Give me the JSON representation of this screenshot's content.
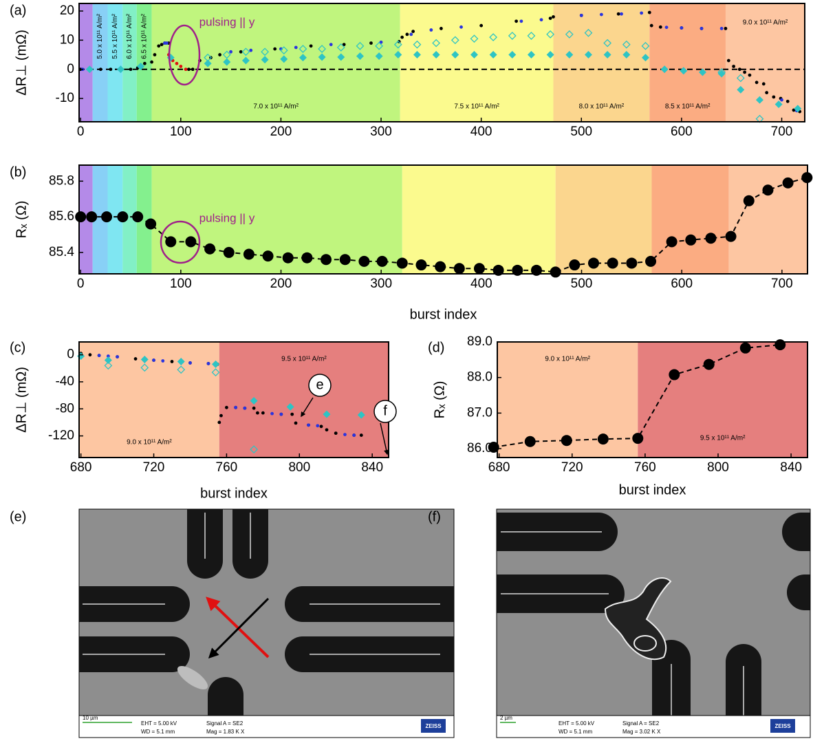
{
  "chart_data": [
    {
      "type": "scatter",
      "panel": "(a)",
      "ylabel": "ΔR⊥ (mΩ)",
      "xlim": [
        -1.5,
        723
      ],
      "ylim": [
        -18,
        22.6
      ],
      "xticks": [
        0,
        100,
        200,
        300,
        400,
        500,
        600,
        700
      ],
      "yticks": [
        -10,
        0,
        10,
        20
      ],
      "hline": 0,
      "bands": [
        {
          "start": -1.5,
          "end": 12,
          "color": "#b48ae8"
        },
        {
          "start": 12,
          "end": 27,
          "color": "#88d0f6",
          "label": "5.0 x 10¹¹ A/m²"
        },
        {
          "start": 27,
          "end": 42,
          "color": "#7fe6f2",
          "label": "5.5 x 10¹¹ A/m²"
        },
        {
          "start": 42,
          "end": 56,
          "color": "#82f0c6",
          "label": "6.0 x 10¹¹ A/m²"
        },
        {
          "start": 56,
          "end": 71,
          "color": "#84f08e",
          "label": "6.5 x 10¹¹ A/m²"
        },
        {
          "start": 71,
          "end": 319,
          "color": "#c0f57e",
          "label": "7.0 x 10¹¹ A/m²"
        },
        {
          "start": 319,
          "end": 472,
          "color": "#fbfa8e",
          "label": "7.5 x 10¹¹ A/m²"
        },
        {
          "start": 472,
          "end": 568,
          "color": "#fbd68e",
          "label": "8.0 x 10¹¹ A/m²"
        },
        {
          "start": 568,
          "end": 644,
          "color": "#fbac82",
          "label": "8.5 x 10¹¹ A/m²"
        },
        {
          "start": 644,
          "end": 723,
          "color": "#fdc6a2",
          "label": "9.0 x 10¹¹ A/m²"
        }
      ],
      "series": [
        {
          "color": "#000000",
          "marker": "dot",
          "x": [
            0,
            10,
            20,
            30,
            40,
            50,
            57,
            64,
            71,
            74,
            78,
            81,
            84,
            88,
            108,
            112,
            119,
            130,
            139,
            160,
            194,
            230,
            263,
            290,
            318,
            321,
            326,
            332,
            360,
            400,
            435,
            469,
            472,
            500,
            537,
            568,
            570,
            579,
            600,
            620,
            644,
            647,
            652,
            658,
            663,
            668,
            675,
            682,
            685,
            692,
            699,
            706,
            712,
            718
          ],
          "values": [
            0,
            0,
            0,
            0,
            0,
            0,
            0.5,
            2,
            2.5,
            5,
            8,
            8.5,
            9,
            9,
            0,
            0,
            3,
            4,
            5,
            6,
            7,
            8,
            8.5,
            9,
            9.5,
            11,
            12,
            13,
            14,
            15,
            16.5,
            17.5,
            18,
            18.5,
            19,
            19.5,
            15,
            14.5,
            14.2,
            14,
            14,
            3,
            1,
            0,
            -1,
            -2,
            -4.5,
            -5,
            -8,
            -9.5,
            -10,
            -11,
            -14,
            -14.5
          ]
        },
        {
          "color": "#e01010",
          "marker": "dot",
          "x": [
            88,
            92,
            96,
            100,
            105
          ],
          "values": [
            5,
            3,
            2,
            1,
            0
          ]
        },
        {
          "color": "#2a34e0",
          "marker": "dot",
          "x": [
            2,
            8,
            40,
            84,
            86,
            150,
            170,
            200,
            215,
            250,
            300,
            330,
            350,
            380,
            440,
            460,
            500,
            520,
            540,
            560,
            585,
            600,
            620,
            640,
            700,
            715
          ],
          "values": [
            0,
            0,
            0,
            9,
            9,
            6,
            6.5,
            7,
            7.5,
            8.5,
            9.3,
            12,
            13.5,
            14.5,
            16.5,
            17,
            18.5,
            18.8,
            19,
            19.3,
            14.4,
            14.2,
            14,
            14,
            -10.5,
            -14.2
          ]
        },
        {
          "color": "#2ec4c4",
          "marker": "diamond",
          "x": [
            9,
            40,
            60,
            90,
            127,
            146,
            165,
            184,
            203,
            222,
            241,
            260,
            279,
            298,
            317,
            336,
            355,
            374,
            393,
            412,
            431,
            450,
            469,
            488,
            507,
            526,
            545,
            564,
            583,
            602,
            621,
            640,
            659,
            678,
            697,
            716
          ],
          "values": [
            0,
            0,
            1,
            4,
            2,
            2.5,
            3,
            3.3,
            3.5,
            4,
            4.2,
            4.2,
            4.5,
            4.5,
            5,
            5,
            5,
            5,
            5,
            5,
            5,
            5,
            5,
            5,
            5,
            5,
            5,
            4,
            0,
            -0.5,
            -1,
            -1.5,
            -7,
            -10.5,
            -12,
            -13.5
          ]
        },
        {
          "color": "#2ec4c4",
          "marker": "open-diamond",
          "x": [
            127,
            146,
            165,
            184,
            203,
            222,
            241,
            260,
            279,
            298,
            317,
            336,
            355,
            374,
            393,
            412,
            431,
            450,
            469,
            488,
            507,
            526,
            545,
            564,
            640,
            659,
            678
          ],
          "values": [
            4,
            5,
            6,
            6,
            6.5,
            7,
            7,
            7.5,
            8,
            8,
            8.5,
            8.5,
            9,
            10,
            10.5,
            11,
            11.5,
            11.5,
            12,
            12,
            12.5,
            9,
            8.5,
            8,
            -1,
            -3,
            -17
          ]
        }
      ],
      "annotations": [
        "pulsing || y"
      ]
    },
    {
      "type": "line",
      "panel": "(b)",
      "ylabel": "Rₓ (Ω)",
      "xlabel": "burst index",
      "xlim": [
        -1.5,
        725.5
      ],
      "ylim": [
        85.28,
        85.89
      ],
      "xticks": [
        0,
        100,
        200,
        300,
        400,
        500,
        600,
        700
      ],
      "yticks": [
        85.4,
        85.6,
        85.8
      ],
      "bands": [
        {
          "start": -1.5,
          "end": 12,
          "color": "#b48ae8"
        },
        {
          "start": 12,
          "end": 27,
          "color": "#88d0f6"
        },
        {
          "start": 27,
          "end": 42,
          "color": "#7fe6f2"
        },
        {
          "start": 42,
          "end": 56,
          "color": "#82f0c6"
        },
        {
          "start": 56,
          "end": 71,
          "color": "#84f08e"
        },
        {
          "start": 71,
          "end": 321,
          "color": "#c0f57e"
        },
        {
          "start": 321,
          "end": 474,
          "color": "#fbfa8e"
        },
        {
          "start": 474,
          "end": 570,
          "color": "#fbd68e"
        },
        {
          "start": 570,
          "end": 647,
          "color": "#fbac82"
        },
        {
          "start": 647,
          "end": 725.5,
          "color": "#fdc6a2"
        }
      ],
      "series": [
        {
          "color": "#000000",
          "marker": "circle",
          "x": [
            0,
            11,
            26,
            42,
            57,
            70,
            90,
            110,
            129,
            148,
            168,
            187,
            207,
            226,
            245,
            264,
            283,
            301,
            321,
            340,
            359,
            378,
            398,
            417,
            436,
            455,
            474,
            493,
            512,
            531,
            550,
            569,
            590,
            609,
            629,
            649,
            667,
            686,
            706,
            725
          ],
          "values": [
            85.6,
            85.6,
            85.6,
            85.6,
            85.6,
            85.56,
            85.46,
            85.46,
            85.42,
            85.4,
            85.39,
            85.38,
            85.37,
            85.37,
            85.36,
            85.36,
            85.35,
            85.35,
            85.34,
            85.33,
            85.32,
            85.31,
            85.31,
            85.3,
            85.3,
            85.3,
            85.29,
            85.33,
            85.34,
            85.34,
            85.34,
            85.35,
            85.46,
            85.47,
            85.48,
            85.49,
            85.69,
            85.75,
            85.79,
            85.82
          ]
        }
      ],
      "annotations": [
        "pulsing || y"
      ]
    },
    {
      "type": "scatter",
      "panel": "(c)",
      "ylabel": "ΔR⊥ (mΩ)",
      "xlabel": "burst index",
      "xlim": [
        679,
        849
      ],
      "ylim": [
        -152,
        19
      ],
      "xticks": [
        680,
        720,
        760,
        800,
        840
      ],
      "yticks": [
        -120,
        -80,
        -40,
        0
      ],
      "bands": [
        {
          "start": 679,
          "end": 756,
          "color": "#fdc6a2",
          "label": "9.0 x 10¹¹ A/m²"
        },
        {
          "start": 756,
          "end": 849,
          "color": "#e57f7e",
          "label": "9.5 x 10¹¹ A/m²"
        }
      ],
      "series": [
        {
          "color": "#000000",
          "marker": "dot",
          "x": [
            680,
            685,
            690,
            700,
            710,
            720,
            730,
            740,
            750,
            755,
            756,
            757,
            760,
            765,
            770,
            775,
            777,
            780,
            790,
            796,
            798,
            805,
            812,
            815,
            820,
            830,
            834
          ],
          "values": [
            2,
            0,
            -1,
            -3,
            -6,
            -8,
            -10,
            -12,
            -13,
            -14,
            -100,
            -90,
            -78,
            -78,
            -79,
            -79,
            -86,
            -86,
            -88,
            -88,
            -101,
            -104,
            -106,
            -111,
            -116,
            -119,
            -119
          ]
        },
        {
          "color": "#2a34e0",
          "marker": "dot",
          "x": [
            690,
            695,
            700,
            720,
            725,
            740,
            750,
            765,
            770,
            785,
            790,
            805,
            810,
            825,
            830
          ],
          "values": [
            -1,
            -2,
            -3,
            -8,
            -9,
            -12,
            -13,
            -78,
            -79,
            -87,
            -88,
            -104,
            -105,
            -118,
            -119
          ]
        },
        {
          "color": "#2ec4c4",
          "marker": "diamond",
          "x": [
            680,
            695,
            715,
            735,
            754,
            775,
            795,
            815,
            834
          ],
          "values": [
            -2,
            -8,
            -7,
            -10,
            -14,
            -68,
            -77,
            -88,
            -89
          ]
        },
        {
          "color": "#2ec4c4",
          "marker": "open-diamond",
          "x": [
            695,
            715,
            735,
            754,
            775
          ],
          "values": [
            -16,
            -19,
            -22,
            -26,
            -140
          ]
        }
      ],
      "annotations": [
        "e",
        "f"
      ]
    },
    {
      "type": "line",
      "panel": "(d)",
      "ylabel": "Rₓ (Ω)",
      "xlabel": "burst index",
      "xlim": [
        679,
        849
      ],
      "ylim": [
        85.75,
        89.0
      ],
      "xticks": [
        680,
        720,
        760,
        800,
        840
      ],
      "yticks": [
        {
          "value": 86,
          "label": "86.0"
        },
        {
          "value": 87,
          "label": "87.0"
        },
        {
          "value": 88,
          "label": "88.0"
        },
        {
          "value": 89,
          "label": "89.0"
        }
      ],
      "bands": [
        {
          "start": 679,
          "end": 756,
          "color": "#fdc6a2",
          "label": "9.0 x 10¹¹ A/m²"
        },
        {
          "start": 756,
          "end": 849,
          "color": "#e57f7e",
          "label": "9.5 x 10¹¹ A/m²"
        }
      ],
      "series": [
        {
          "color": "#000000",
          "marker": "circle",
          "x": [
            677,
            697,
            717,
            737,
            756,
            776,
            795,
            815,
            834
          ],
          "values": [
            86.04,
            86.2,
            86.23,
            86.27,
            86.29,
            88.08,
            88.37,
            88.83,
            88.92
          ]
        }
      ]
    }
  ],
  "images": [
    {
      "panel": "(e)",
      "scale_bar": "10 µm",
      "eht": "EHT = 5.00 kV",
      "wd": "WD = 5.1 mm",
      "signal": "Signal A = SE2",
      "mag": "Mag =  1.83 K X",
      "logo": "ZEISS"
    },
    {
      "panel": "(f)",
      "scale_bar": "2 µm",
      "eht": "EHT = 5.00 kV",
      "wd": "WD = 5.1 mm",
      "signal": "Signal A = SE2",
      "mag": "Mag =  3.02 K X",
      "logo": "ZEISS"
    }
  ]
}
